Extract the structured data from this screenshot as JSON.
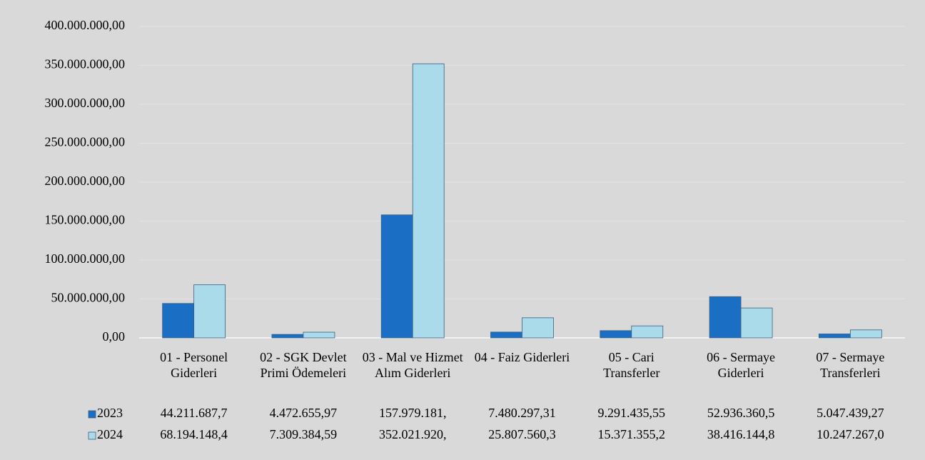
{
  "chart_data": {
    "type": "bar",
    "categories": [
      "01 - Personel Giderleri",
      "02 - SGK Devlet Primi Ödemeleri",
      "03 - Mal ve Hizmet Alım Giderleri",
      "04 - Faiz Giderleri",
      "05 - Cari Transferler",
      "06 - Sermaye Giderleri",
      "07 - Sermaye Transferleri"
    ],
    "series": [
      {
        "name": "2023",
        "color": "#1a6fc4",
        "values": [
          44211687.7,
          4472655.97,
          157979181,
          7480297.31,
          9291435.55,
          52936360.5,
          5047439.27
        ],
        "value_labels": [
          "44.211.687,7",
          "4.472.655,97",
          "157.979.181,",
          "7.480.297,31",
          "9.291.435,55",
          "52.936.360,5",
          "5.047.439,27"
        ]
      },
      {
        "name": "2024",
        "color": "#a9dbea",
        "values": [
          68194148.4,
          7309384.59,
          352021920,
          25807560.3,
          15371355.2,
          38416144.8,
          10247267.0
        ],
        "value_labels": [
          "68.194.148,4",
          "7.309.384,59",
          "352.021.920,",
          "25.807.560,3",
          "15.371.355,2",
          "38.416.144,8",
          "10.247.267,0"
        ]
      }
    ],
    "ylim": [
      0,
      400000000
    ],
    "yticks": [
      {
        "value": 0,
        "label": "0,00"
      },
      {
        "value": 50000000,
        "label": "50.000.000,00"
      },
      {
        "value": 100000000,
        "label": "100.000.000,00"
      },
      {
        "value": 150000000,
        "label": "150.000.000,00"
      },
      {
        "value": 200000000,
        "label": "200.000.000,00"
      },
      {
        "value": 250000000,
        "label": "250.000.000,00"
      },
      {
        "value": 300000000,
        "label": "300.000.000,00"
      },
      {
        "value": 350000000,
        "label": "350.000.000,00"
      },
      {
        "value": 400000000,
        "label": "400.000.000,00"
      }
    ],
    "grid": true
  }
}
